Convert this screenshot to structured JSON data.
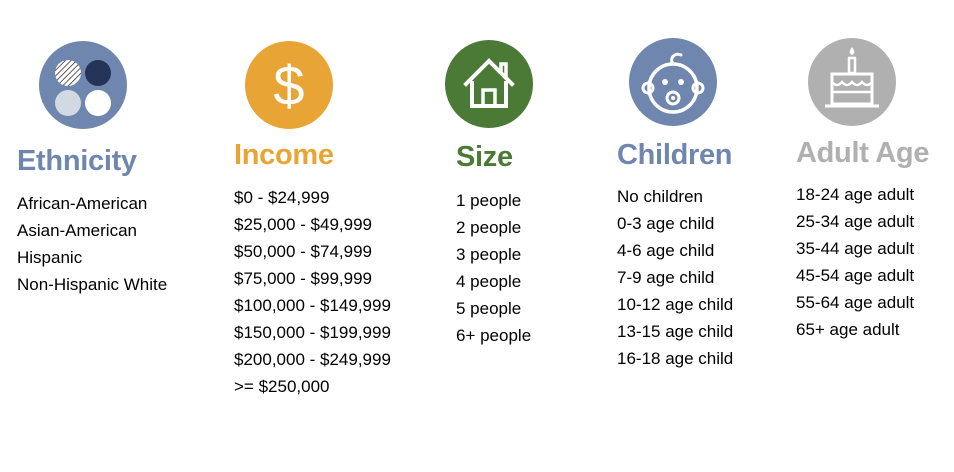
{
  "colors": {
    "ethnicity": "#6F86AE",
    "income": "#E8A535",
    "size": "#4A7A35",
    "children": "#6F86AE",
    "adult_age": "#B0B0B0"
  },
  "categories": [
    {
      "key": "ethnicity",
      "title": "Ethnicity",
      "icon": "circles-icon",
      "items": [
        "African-American",
        "Asian-American",
        "Hispanic",
        "Non-Hispanic White"
      ]
    },
    {
      "key": "income",
      "title": "Income",
      "icon": "dollar-icon",
      "items": [
        "$0 - $24,999",
        "$25,000 - $49,999",
        "$50,000 - $74,999",
        "$75,000 - $99,999",
        "$100,000 - $149,999",
        "$150,000 - $199,999",
        "$200,000 - $249,999",
        ">= $250,000"
      ]
    },
    {
      "key": "size",
      "title": "Size",
      "icon": "house-icon",
      "items": [
        "1 people",
        "2 people",
        "3 people",
        "4 people",
        "5 people",
        "6+ people"
      ]
    },
    {
      "key": "children",
      "title": "Children",
      "icon": "baby-face-icon",
      "items": [
        "No children",
        "0-3 age child",
        "4-6 age child",
        "7-9 age child",
        "10-12 age child",
        "13-15 age child",
        "16-18 age child"
      ]
    },
    {
      "key": "adult_age",
      "title": "Adult Age",
      "icon": "birthday-cake-icon",
      "items": [
        "18-24 age adult",
        "25-34 age adult",
        "35-44 age adult",
        "45-54 age adult",
        "55-64 age adult",
        "65+ age adult"
      ]
    }
  ]
}
